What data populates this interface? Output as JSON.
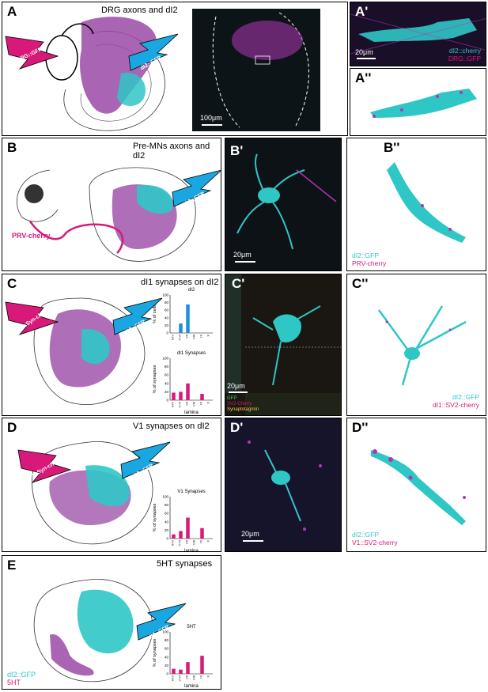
{
  "panels": {
    "A": {
      "label": "A",
      "title": "DRG axons and dI2",
      "bolt_left": "DRG::GFP",
      "bolt_right": "dI2::GFP",
      "scale": "100μm"
    },
    "A1": {
      "label": "A'",
      "scale": "20μm",
      "legend": [
        "dI2::cherry",
        "DRG::GFP"
      ]
    },
    "A2": {
      "label": "A''"
    },
    "B": {
      "label": "B",
      "title": "Pre-MNs axons and dI2",
      "bolt_right": "dI2::GFP",
      "virus": "PRV-cherry"
    },
    "B1": {
      "label": "B'",
      "scale": "20μm"
    },
    "B2": {
      "label": "B''",
      "legend": [
        "dI2::GFP",
        "PRV-cherry"
      ]
    },
    "C": {
      "label": "C",
      "title": "dI1 synapses on dI2",
      "bolt_left": "dI1::Syn-cherry",
      "bolt_right": "dI2::GFP"
    },
    "C1": {
      "label": "C'",
      "scale": "20μm",
      "channels": [
        "GFP",
        "SV2-Cherry",
        "Synaptotagmin"
      ]
    },
    "C2": {
      "label": "C''",
      "legend": [
        "dI2::GFP",
        "dI1::SV2-cherry"
      ]
    },
    "D": {
      "label": "D",
      "title": "V1 synapses on dI2",
      "bolt_left": "V1::Syn-cherry",
      "bolt_right": "dI2::GFP"
    },
    "D1": {
      "label": "D'",
      "scale": "20μm"
    },
    "D2": {
      "label": "D''",
      "legend": [
        "dI2::GFP",
        "V1::SV2-cherry"
      ]
    },
    "E": {
      "label": "E",
      "title": "5HT synapses",
      "bolt_right": "dI2::GFP",
      "legend": [
        "dI2::GFP",
        "5HT"
      ]
    }
  },
  "colors": {
    "cyan": "#2fc6c6",
    "magenta": "#d8197a",
    "purple": "#9a4aa6",
    "bar_blue": "#1e8fd8",
    "bar_pink": "#d8197a"
  },
  "chart_data": [
    {
      "id": "C-dI2",
      "type": "bar",
      "title": "dI2",
      "ylabel": "% of cells",
      "categories": [
        "II-IV",
        "V-VI",
        "VII",
        "VIII",
        "IX",
        "X"
      ],
      "values": [
        0,
        25,
        75,
        0,
        0,
        0
      ],
      "ylim": [
        0,
        100
      ],
      "yticks": [
        0,
        20,
        40,
        60,
        80,
        100
      ],
      "color": "#1e8fd8"
    },
    {
      "id": "C-dI1",
      "type": "bar",
      "title": "dI1 Synapses",
      "ylabel": "% of synapses",
      "xlabel": "lamina",
      "categories": [
        "II-IV",
        "V-VI",
        "VII",
        "VIII",
        "IX",
        "X"
      ],
      "values": [
        18,
        20,
        40,
        0,
        15,
        0
      ],
      "ylim": [
        0,
        100
      ],
      "yticks": [
        0,
        20,
        40,
        60,
        80,
        100
      ],
      "color": "#d8197a"
    },
    {
      "id": "D-V1",
      "type": "bar",
      "title": "V1 Synapses",
      "ylabel": "% of synapses",
      "xlabel": "lamina",
      "categories": [
        "II-IV",
        "V-VI",
        "VII",
        "VIII",
        "IX",
        "X"
      ],
      "values": [
        10,
        18,
        50,
        0,
        25,
        0
      ],
      "ylim": [
        0,
        100
      ],
      "yticks": [
        0,
        20,
        40,
        60,
        80,
        100
      ],
      "color": "#d8197a"
    },
    {
      "id": "E-5HT",
      "type": "bar",
      "title": "5HT",
      "ylabel": "% of synapses",
      "xlabel": "lamina",
      "categories": [
        "II-IV",
        "V-VI",
        "VII",
        "VIII",
        "IX",
        "X"
      ],
      "values": [
        12,
        10,
        28,
        0,
        43,
        0
      ],
      "ylim": [
        0,
        100
      ],
      "yticks": [
        0,
        20,
        40,
        60,
        80,
        100
      ],
      "color": "#d8197a"
    }
  ]
}
